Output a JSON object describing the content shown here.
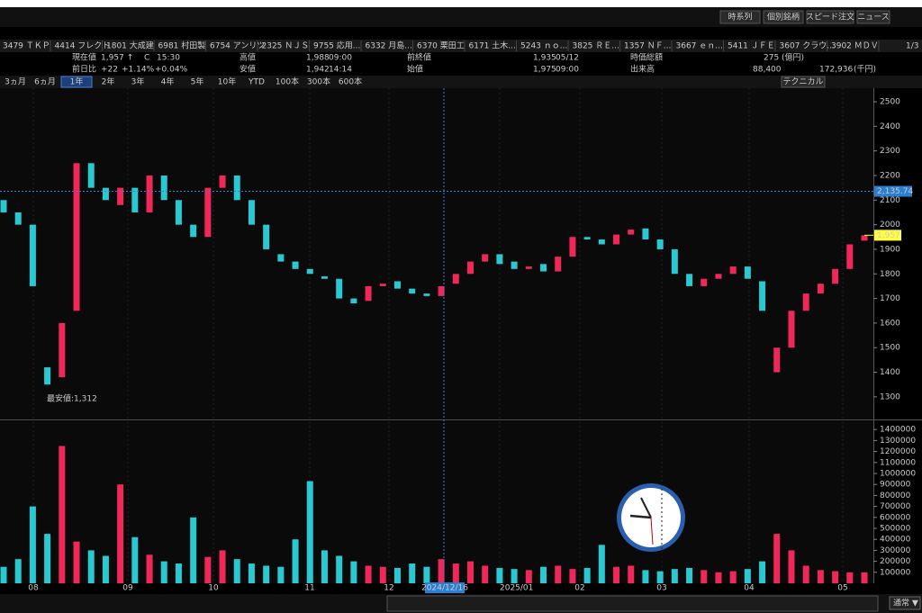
{
  "toolbar": {
    "buttons": [
      "時系列",
      "個別銘柄",
      "スピード注文",
      "ニュース"
    ]
  },
  "tabs": [
    "3479 ＴＫＰ",
    "4414 フレクト",
    "1801 大成建",
    "6981 村田製",
    "6754 アンリツ",
    "2325 ＮＪＳ",
    "9755 応用...",
    "6332 月島...",
    "6370 栗田工",
    "6171 土木...",
    "5243 ｎｏ...",
    "3825 ＲＥ...",
    "1357 ＮＦ...",
    "3667 ｅｎ...",
    "5411 ＪＦＥ",
    "3607 クラウ...",
    "3902 ＭＤＶ"
  ],
  "page_indicator": "1/3",
  "quote": {
    "current_label": "現在値",
    "current": "1,957 ↑",
    "flag": "C",
    "time": "15:30",
    "change_label": "前日比",
    "change": "+22",
    "change_pct": "+1.14%",
    "change_pct2": "+0.04%",
    "high_label": "高値",
    "high": "1,988",
    "high_time": "09:00",
    "low_label": "安値",
    "low": "1,942",
    "low_time": "14:14",
    "prev_label": "前終値",
    "prev": "1,935",
    "prev_date": "05/12",
    "open_label": "始値",
    "open": "1,975",
    "open_time": "09:00",
    "mcap_label": "時価総額",
    "mcap": "275",
    "mcap_unit": "(億円)",
    "vol_label": "出来高",
    "vol": "88,400",
    "turnover": "172,936",
    "turnover_unit": "(千円)"
  },
  "periods": [
    "3ヵ月",
    "6ヵ月",
    "1年",
    "2年",
    "3年",
    "4年",
    "5年",
    "10年",
    "YTD",
    "100本",
    "300本",
    "600本"
  ],
  "technical": "テクニカル",
  "footer_mode": "通常 ▼",
  "chart_data": [
    {
      "type": "candlestick",
      "open": [
        2100,
        2050,
        2000,
        1420,
        1380,
        1650,
        2250,
        2150,
        2080,
        2150,
        2050,
        2200,
        2100,
        2000,
        1950,
        2150,
        2200,
        2100,
        2000,
        1880,
        1850,
        1820,
        1790,
        1780,
        1700,
        1690,
        1750,
        1770,
        1740,
        1720,
        1710,
        1760,
        1800,
        1850,
        1880,
        1850,
        1820,
        1840,
        1810,
        1870,
        1950,
        1940,
        1920,
        1960,
        1985,
        1940,
        1900,
        1800,
        1750,
        1780,
        1800,
        1830,
        1770,
        1400,
        1500,
        1650,
        1720,
        1760,
        1820,
        1935
      ],
      "close": [
        2050,
        2000,
        1750,
        1350,
        1600,
        2250,
        2150,
        2100,
        2150,
        2050,
        2200,
        2100,
        2000,
        1950,
        2150,
        2200,
        2100,
        2000,
        1900,
        1850,
        1820,
        1800,
        1780,
        1700,
        1680,
        1750,
        1760,
        1740,
        1720,
        1710,
        1750,
        1800,
        1850,
        1880,
        1840,
        1820,
        1830,
        1810,
        1870,
        1950,
        1940,
        1920,
        1960,
        1980,
        1940,
        1900,
        1800,
        1750,
        1780,
        1800,
        1830,
        1780,
        1650,
        1500,
        1650,
        1720,
        1760,
        1820,
        1920,
        1957
      ],
      "ylim": [
        1208,
        2555
      ],
      "yticks": [
        1300,
        1400,
        1500,
        1600,
        1700,
        1800,
        1900,
        2000,
        2100,
        2200,
        2300,
        2400,
        2500
      ],
      "x_labels": [
        "08",
        "09",
        "10",
        "11",
        "12",
        "2025/01",
        "02",
        "03",
        "04",
        "05"
      ],
      "crosshair_date": "2024/12/16",
      "crosshair": {
        "value": 2135.74,
        "label": "2,135.74"
      },
      "last": {
        "value": 1957,
        "label": "1,957"
      },
      "low_annotation": "最安値:1,312"
    },
    {
      "type": "bar",
      "values": [
        150000,
        220000,
        700000,
        450000,
        1250000,
        380000,
        300000,
        250000,
        900000,
        420000,
        260000,
        200000,
        180000,
        600000,
        240000,
        300000,
        220000,
        180000,
        160000,
        150000,
        400000,
        930000,
        300000,
        250000,
        200000,
        160000,
        150000,
        140000,
        180000,
        150000,
        220000,
        180000,
        200000,
        160000,
        140000,
        130000,
        120000,
        150000,
        160000,
        130000,
        140000,
        350000,
        150000,
        160000,
        120000,
        110000,
        130000,
        140000,
        120000,
        100000,
        110000,
        130000,
        200000,
        450000,
        300000,
        160000,
        120000,
        110000,
        100000,
        100000
      ],
      "ylim": [
        0,
        1475000
      ],
      "yticks": [
        100000,
        200000,
        300000,
        400000,
        500000,
        600000,
        700000,
        800000,
        900000,
        1000000,
        1100000,
        1200000,
        1300000,
        1400000
      ]
    }
  ]
}
